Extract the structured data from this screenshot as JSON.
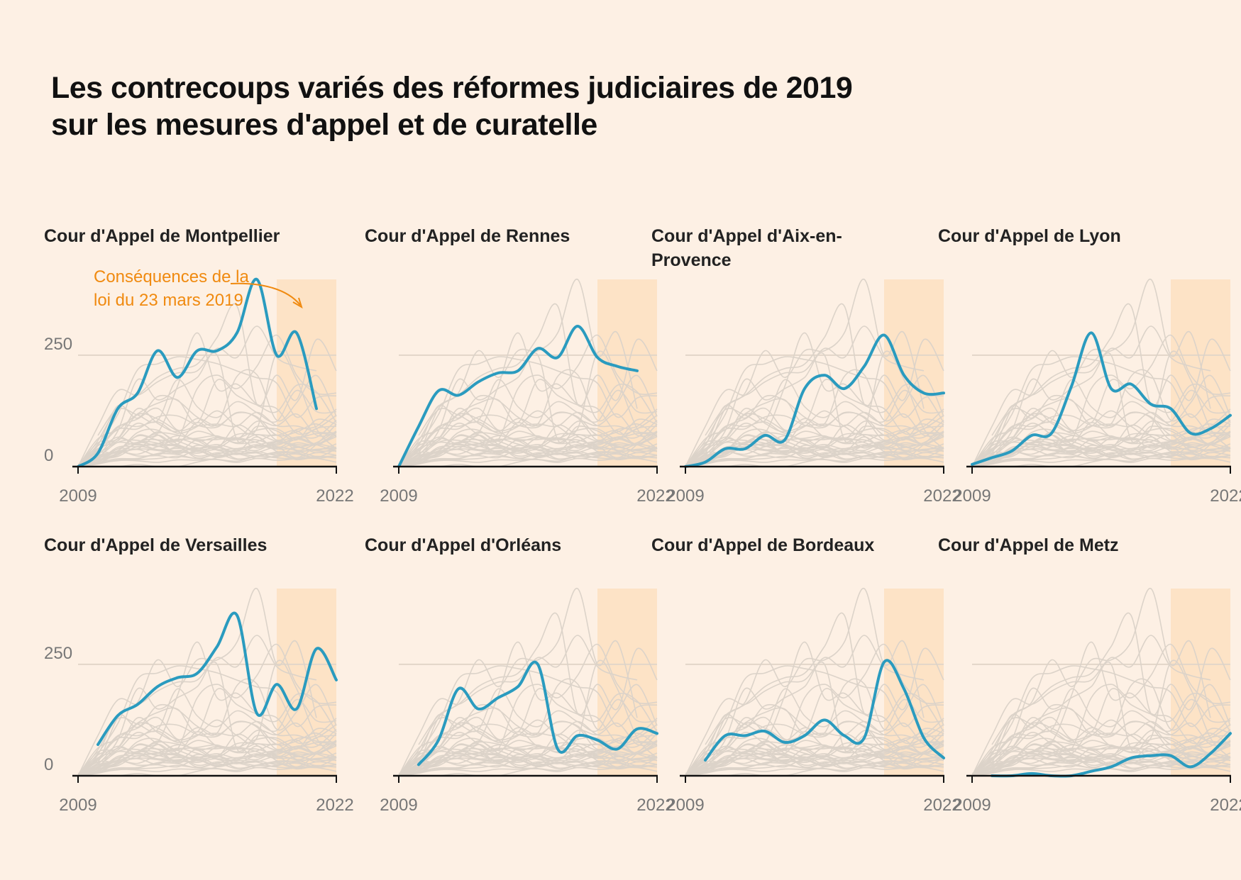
{
  "title": {
    "line1": "Les contrecoups variés des réformes judiciaires de 2019",
    "line2": "sur les mesures d'appel et de curatelle"
  },
  "annotation": "Conséquences de la loi du 23 mars 2019",
  "colors": {
    "background": "#fdf0e4",
    "highlight": "#2a9bbf",
    "ghost": "#dcd3c9",
    "shade": "#fde3c6",
    "annotation": "#f08a10"
  },
  "chart_data": {
    "type": "line",
    "layout": "small-multiples",
    "x": [
      2009,
      2010,
      2011,
      2012,
      2013,
      2014,
      2015,
      2016,
      2017,
      2018,
      2019,
      2020,
      2021,
      2022
    ],
    "xlim": [
      2009,
      2022
    ],
    "ylim": [
      0,
      420
    ],
    "y_ticks": [
      0,
      250
    ],
    "x_tick_labels": [
      "2009",
      "2022"
    ],
    "y_tick_labels": [
      "0",
      "250"
    ],
    "shaded_period": [
      2019,
      2022
    ],
    "panels": [
      {
        "title": "Cour d'Appel de Montpellier",
        "values": [
          0,
          30,
          130,
          165,
          260,
          200,
          260,
          260,
          300,
          420,
          250,
          300,
          130,
          null
        ]
      },
      {
        "title": "Cour d'Appel de Rennes",
        "values": [
          0,
          90,
          170,
          160,
          190,
          210,
          215,
          265,
          245,
          315,
          245,
          225,
          215,
          null
        ]
      },
      {
        "title": "Cour d'Appel d'Aix-en-Provence",
        "values": [
          0,
          10,
          40,
          40,
          70,
          60,
          175,
          205,
          175,
          225,
          295,
          205,
          165,
          165
        ]
      },
      {
        "title": "Cour d'Appel de Lyon",
        "values": [
          5,
          20,
          35,
          70,
          75,
          180,
          300,
          175,
          185,
          140,
          130,
          75,
          85,
          115
        ]
      },
      {
        "title": "Cour d'Appel de Versailles",
        "values": [
          null,
          70,
          135,
          160,
          200,
          220,
          230,
          290,
          360,
          140,
          205,
          150,
          285,
          215
        ]
      },
      {
        "title": "Cour d'Appel d'Orléans",
        "values": [
          null,
          25,
          80,
          195,
          150,
          175,
          200,
          250,
          60,
          90,
          80,
          60,
          105,
          95
        ]
      },
      {
        "title": "Cour d'Appel de Bordeaux",
        "values": [
          null,
          35,
          90,
          90,
          100,
          75,
          90,
          125,
          90,
          85,
          255,
          195,
          85,
          40
        ]
      },
      {
        "title": "Cour d'Appel de Metz",
        "values": [
          null,
          0,
          0,
          5,
          0,
          0,
          10,
          20,
          40,
          45,
          45,
          20,
          50,
          95
        ]
      }
    ],
    "background_series_count": 30,
    "background_series_note": "other courts of appeal, grey"
  }
}
